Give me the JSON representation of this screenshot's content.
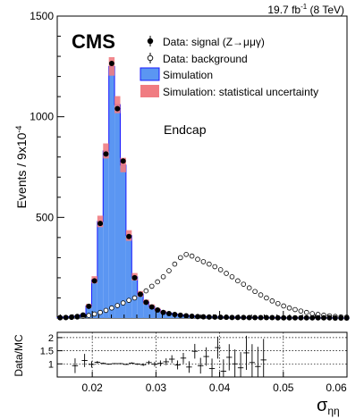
{
  "lumi_text": {
    "value": "19.7 fb",
    "sup": "-1",
    "energy": " (8 TeV)"
  },
  "chart_data": [
    {
      "type": "histogram",
      "experiment": "CMS",
      "annotation": "Endcap",
      "ylabel": "Events / 9x10",
      "ylabel_exp": "-4",
      "xlim": [
        0.0145,
        0.06
      ],
      "ylim": [
        0,
        1500
      ],
      "y_ticks": [
        500,
        1000,
        1500
      ],
      "legend": [
        {
          "key": "signal",
          "label": "Data: signal (Z→μμγ)"
        },
        {
          "key": "background",
          "label": "Data: background"
        },
        {
          "key": "simulation",
          "label": "Simulation"
        },
        {
          "key": "stat_unc",
          "label": "Simulation: statistical uncertainty"
        }
      ],
      "colors": {
        "simulation_fill": "#5b96f2",
        "simulation_line": "#1a1aff",
        "uncertainty": "#f07c82",
        "data": "#000000"
      },
      "bin_edges": [
        0.0145,
        0.0154,
        0.0163,
        0.0172,
        0.0181,
        0.019,
        0.0199,
        0.0208,
        0.0217,
        0.0226,
        0.0235,
        0.0244,
        0.0253,
        0.0262,
        0.0271,
        0.028,
        0.0289,
        0.0298,
        0.0307,
        0.0316,
        0.0325,
        0.0334,
        0.0343,
        0.0352,
        0.0361,
        0.037,
        0.0379,
        0.0388,
        0.0397,
        0.0406,
        0.0415,
        0.0424,
        0.0433,
        0.0442,
        0.0451,
        0.046,
        0.0469,
        0.0478,
        0.0487,
        0.0496,
        0.0505,
        0.0514,
        0.0523,
        0.0532,
        0.0541,
        0.055,
        0.0559,
        0.0568,
        0.0577,
        0.0586,
        0.0595,
        0.0604
      ],
      "simulation": [
        3,
        5,
        7,
        9,
        16,
        60,
        190,
        480,
        830,
        1250,
        1060,
        760,
        410,
        205,
        120,
        80,
        58,
        42,
        30,
        24,
        19,
        15,
        12,
        10,
        8,
        7,
        6,
        5,
        5,
        4,
        4,
        3,
        3,
        3,
        2,
        2,
        2,
        2,
        2,
        1,
        1,
        1,
        1,
        1,
        1,
        1,
        1,
        1,
        0,
        0,
        0
      ],
      "signal_data": [
        2,
        3,
        5,
        8,
        15,
        58,
        185,
        470,
        815,
        1265,
        1040,
        780,
        405,
        200,
        118,
        78,
        55,
        40,
        28,
        22,
        18,
        14,
        11,
        9,
        7,
        6,
        5,
        5,
        4,
        4,
        3,
        3,
        3,
        2,
        2,
        2,
        2,
        2,
        1,
        1,
        1,
        1,
        1,
        1,
        1,
        1,
        1,
        1,
        0,
        0,
        0
      ],
      "background_data": [
        1,
        2,
        3,
        5,
        8,
        13,
        20,
        28,
        38,
        50,
        62,
        75,
        88,
        100,
        118,
        135,
        158,
        180,
        205,
        235,
        268,
        300,
        316,
        308,
        292,
        280,
        268,
        255,
        240,
        222,
        205,
        185,
        168,
        150,
        132,
        115,
        100,
        85,
        72,
        60,
        50,
        42,
        35,
        28,
        22,
        18,
        14,
        11,
        8,
        6,
        5
      ],
      "ratio_panel": {
        "ylabel": "Data/MC",
        "ylim": [
          0.5,
          2.2
        ],
        "y_ticks": [
          1,
          1.5,
          2
        ],
        "x_ticks": [
          0.02,
          0.03,
          0.04,
          0.05,
          0.06
        ],
        "x_tick_labels": [
          "0.02",
          "0.03",
          "0.04",
          "0.05",
          "0.06"
        ],
        "xlabel": "σ",
        "xlabel_sub": "ηη",
        "points": [
          {
            "x": 0.0173,
            "y": 0.93,
            "err": 0.28
          },
          {
            "x": 0.0188,
            "y": 1.13,
            "err": 0.25
          },
          {
            "x": 0.0199,
            "y": 0.98,
            "err": 0.12
          },
          {
            "x": 0.0208,
            "y": 1.06,
            "err": 0.05
          },
          {
            "x": 0.0217,
            "y": 1.02,
            "err": 0.03
          },
          {
            "x": 0.0226,
            "y": 0.99,
            "err": 0.02
          },
          {
            "x": 0.0235,
            "y": 1.01,
            "err": 0.02
          },
          {
            "x": 0.0244,
            "y": 1.01,
            "err": 0.02
          },
          {
            "x": 0.0253,
            "y": 0.98,
            "err": 0.02
          },
          {
            "x": 0.0262,
            "y": 1.03,
            "err": 0.03
          },
          {
            "x": 0.0271,
            "y": 0.99,
            "err": 0.03
          },
          {
            "x": 0.028,
            "y": 0.97,
            "err": 0.05
          },
          {
            "x": 0.0289,
            "y": 1.05,
            "err": 0.07
          },
          {
            "x": 0.0298,
            "y": 0.99,
            "err": 0.09
          },
          {
            "x": 0.0307,
            "y": 1.02,
            "err": 0.11
          },
          {
            "x": 0.0316,
            "y": 1.08,
            "err": 0.13
          },
          {
            "x": 0.0325,
            "y": 1.18,
            "err": 0.15
          },
          {
            "x": 0.0334,
            "y": 0.96,
            "err": 0.17
          },
          {
            "x": 0.0343,
            "y": 1.22,
            "err": 0.2
          },
          {
            "x": 0.0352,
            "y": 0.88,
            "err": 0.22
          },
          {
            "x": 0.0361,
            "y": 1.48,
            "err": 0.28
          },
          {
            "x": 0.037,
            "y": 0.93,
            "err": 0.3
          },
          {
            "x": 0.0379,
            "y": 1.28,
            "err": 0.35
          },
          {
            "x": 0.0388,
            "y": 0.82,
            "err": 0.38
          },
          {
            "x": 0.0397,
            "y": 1.62,
            "err": 0.42
          },
          {
            "x": 0.0406,
            "y": 0.72,
            "err": 0.45
          },
          {
            "x": 0.0415,
            "y": 1.25,
            "err": 0.5
          },
          {
            "x": 0.0424,
            "y": 1.0,
            "err": 0.55
          },
          {
            "x": 0.0433,
            "y": 0.85,
            "err": 0.6
          },
          {
            "x": 0.0442,
            "y": 1.42,
            "err": 0.65
          },
          {
            "x": 0.0451,
            "y": 1.05,
            "err": 0.7
          },
          {
            "x": 0.046,
            "y": 0.9,
            "err": 0.75
          },
          {
            "x": 0.0469,
            "y": 1.15,
            "err": 0.8
          }
        ]
      }
    }
  ]
}
